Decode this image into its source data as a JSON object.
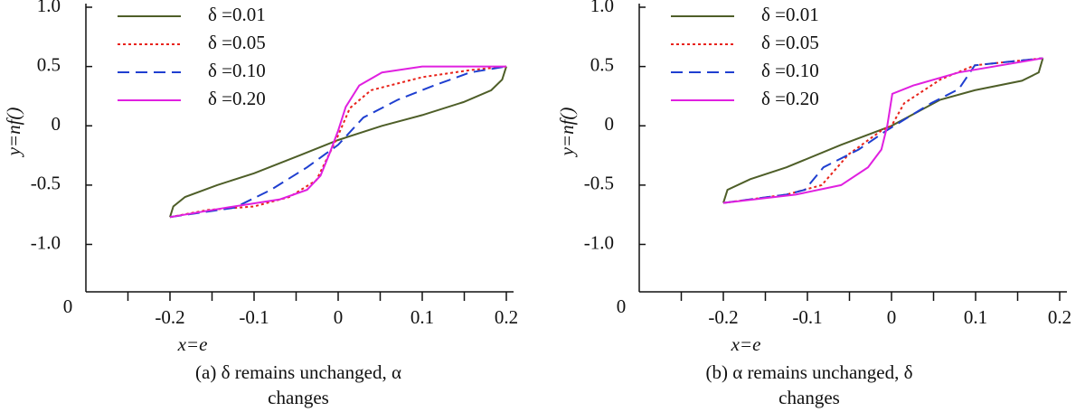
{
  "chart_data": [
    {
      "type": "line",
      "caption": "(a) δ remains unchanged, α changes",
      "xlabel": "x=e",
      "ylabel": "y=nf()",
      "corner_label": "0",
      "xlim": [
        -0.3,
        0.2
      ],
      "ylim": [
        -1.4,
        1.0
      ],
      "xticks": [
        -0.2,
        -0.1,
        0,
        0.1,
        0.2
      ],
      "xminorticks": [
        -0.25,
        -0.15,
        -0.05,
        0.05,
        0.15
      ],
      "yticks": [
        {
          "value": 1,
          "label": "1.0"
        },
        0.5,
        0,
        -0.5,
        {
          "value": -1,
          "label": "-1.0"
        }
      ],
      "legend": "upper left",
      "series": [
        {
          "name": "δ =0.01",
          "color": "#4e5e28",
          "style": "solid",
          "x": [
            -0.2,
            -0.196,
            -0.182,
            -0.144,
            -0.1,
            -0.046,
            0,
            0.052,
            0.1,
            0.149,
            0.182,
            0.195,
            0.2
          ],
          "values": [
            -0.77,
            -0.68,
            -0.6,
            -0.5,
            -0.4,
            -0.25,
            -0.12,
            0,
            0.09,
            0.2,
            0.3,
            0.39,
            0.5
          ]
        },
        {
          "name": "δ =0.05",
          "color": "#e8231b",
          "style": "dotted",
          "x": [
            -0.2,
            -0.155,
            -0.1,
            -0.058,
            -0.026,
            -0.01,
            0,
            0.014,
            0.039,
            0.1,
            0.157,
            0.2
          ],
          "values": [
            -0.77,
            -0.71,
            -0.68,
            -0.6,
            -0.46,
            -0.23,
            -0.08,
            0.15,
            0.3,
            0.41,
            0.47,
            0.5
          ]
        },
        {
          "name": "δ =0.10",
          "color": "#1f3fd0",
          "style": "dashed",
          "x": [
            -0.2,
            -0.123,
            -0.08,
            -0.037,
            0,
            0.03,
            0.071,
            0.114,
            0.157,
            0.2
          ],
          "values": [
            -0.77,
            -0.69,
            -0.54,
            -0.35,
            -0.16,
            0.07,
            0.22,
            0.34,
            0.45,
            0.5
          ]
        },
        {
          "name": "δ =0.20",
          "color": "#e020e0",
          "style": "solid",
          "x": [
            -0.2,
            -0.133,
            -0.069,
            -0.037,
            -0.021,
            -0.01,
            0,
            0.009,
            0.025,
            0.052,
            0.1,
            0.2
          ],
          "values": [
            -0.77,
            -0.69,
            -0.62,
            -0.54,
            -0.42,
            -0.23,
            -0.04,
            0.16,
            0.34,
            0.45,
            0.5,
            0.5
          ]
        }
      ]
    },
    {
      "type": "line",
      "caption": "(b) α remains unchanged, δ changes",
      "xlabel": "x=e",
      "ylabel": "y=nf()",
      "corner_label": "0",
      "xlim": [
        -0.3,
        0.2
      ],
      "ylim": [
        -1.4,
        1.0
      ],
      "xticks": [
        -0.2,
        -0.1,
        0,
        0.1,
        0.2
      ],
      "xminorticks": [
        -0.25,
        -0.15,
        -0.05,
        0.05,
        0.15
      ],
      "yticks": [
        {
          "value": 1,
          "label": "1.0"
        },
        0.5,
        0,
        -0.5,
        {
          "value": -1,
          "label": "-1.0"
        }
      ],
      "legend": "upper left",
      "series": [
        {
          "name": "δ =0.01",
          "color": "#4e5e28",
          "style": "solid",
          "x": [
            -0.2,
            -0.195,
            -0.168,
            -0.125,
            -0.06,
            0,
            0.058,
            0.099,
            0.155,
            0.175,
            0.18
          ],
          "values": [
            -0.65,
            -0.54,
            -0.45,
            -0.35,
            -0.16,
            0,
            0.22,
            0.3,
            0.38,
            0.45,
            0.57
          ]
        },
        {
          "name": "δ =0.05",
          "color": "#e8231b",
          "style": "dotted",
          "x": [
            -0.2,
            -0.125,
            -0.083,
            -0.051,
            -0.012,
            0,
            0.015,
            0.058,
            0.099,
            0.18
          ],
          "values": [
            -0.65,
            -0.58,
            -0.5,
            -0.24,
            -0.04,
            0,
            0.19,
            0.39,
            0.51,
            0.57
          ]
        },
        {
          "name": "δ =0.10",
          "color": "#1f3fd0",
          "style": "dashed",
          "x": [
            -0.2,
            -0.125,
            -0.103,
            -0.081,
            -0.039,
            -0.006,
            0.047,
            0.08,
            0.099,
            0.18
          ],
          "values": [
            -0.65,
            -0.58,
            -0.54,
            -0.35,
            -0.2,
            -0.04,
            0.19,
            0.31,
            0.51,
            0.57
          ]
        },
        {
          "name": "δ =0.20",
          "color": "#e020e0",
          "style": "solid",
          "x": [
            -0.2,
            -0.114,
            -0.06,
            -0.028,
            -0.012,
            -0.005,
            0.001,
            0.026,
            0.08,
            0.18
          ],
          "values": [
            -0.65,
            -0.58,
            -0.5,
            -0.35,
            -0.2,
            0,
            0.27,
            0.34,
            0.45,
            0.57
          ]
        }
      ]
    }
  ]
}
